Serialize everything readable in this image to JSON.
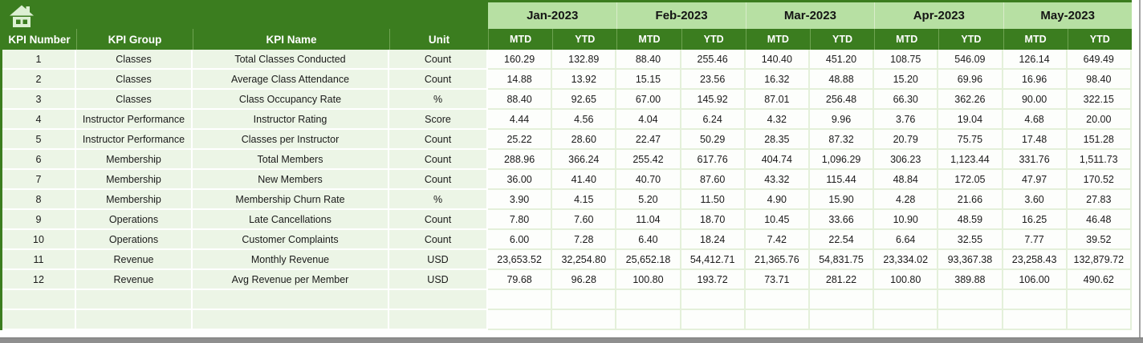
{
  "icons": {
    "home": "house"
  },
  "colors": {
    "header_green": "#3B7D1F",
    "month_band_green": "#B7E0A3",
    "row_green": "#ECF5E6",
    "cell_white": "#FDFEFC",
    "grid_line_green": "#E4F0DA",
    "home_icon_fill": "#DCF0D2",
    "bottom_bar_gray": "#8F8F8F"
  },
  "table": {
    "left_headers": [
      "KPI Number",
      "KPI Group",
      "KPI Name",
      "Unit"
    ],
    "months": [
      "Jan-2023",
      "Feb-2023",
      "Mar-2023",
      "Apr-2023",
      "May-2023"
    ],
    "sub_headers": [
      "MTD",
      "YTD"
    ],
    "empty_row_count": 2,
    "rows": [
      {
        "number": "1",
        "group": "Classes",
        "name": "Total Classes Conducted",
        "unit": "Count",
        "values": [
          "160.29",
          "132.89",
          "88.40",
          "255.46",
          "140.40",
          "451.20",
          "108.75",
          "546.09",
          "126.14",
          "649.49"
        ]
      },
      {
        "number": "2",
        "group": "Classes",
        "name": "Average Class Attendance",
        "unit": "Count",
        "values": [
          "14.88",
          "13.92",
          "15.15",
          "23.56",
          "16.32",
          "48.88",
          "15.20",
          "69.96",
          "16.96",
          "98.40"
        ]
      },
      {
        "number": "3",
        "group": "Classes",
        "name": "Class Occupancy Rate",
        "unit": "%",
        "values": [
          "88.40",
          "92.65",
          "67.00",
          "145.92",
          "87.01",
          "256.48",
          "66.30",
          "362.26",
          "90.00",
          "322.15"
        ]
      },
      {
        "number": "4",
        "group": "Instructor Performance",
        "name": "Instructor Rating",
        "unit": "Score",
        "values": [
          "4.44",
          "4.56",
          "4.04",
          "6.24",
          "4.32",
          "9.96",
          "3.76",
          "19.04",
          "4.68",
          "20.00"
        ]
      },
      {
        "number": "5",
        "group": "Instructor Performance",
        "name": "Classes per Instructor",
        "unit": "Count",
        "values": [
          "25.22",
          "28.60",
          "22.47",
          "50.29",
          "28.35",
          "87.32",
          "20.79",
          "75.75",
          "17.48",
          "151.28"
        ]
      },
      {
        "number": "6",
        "group": "Membership",
        "name": "Total Members",
        "unit": "Count",
        "values": [
          "288.96",
          "366.24",
          "255.42",
          "617.76",
          "404.74",
          "1,096.29",
          "306.23",
          "1,123.44",
          "331.76",
          "1,511.73"
        ]
      },
      {
        "number": "7",
        "group": "Membership",
        "name": "New Members",
        "unit": "Count",
        "values": [
          "36.00",
          "41.40",
          "40.70",
          "87.60",
          "43.32",
          "115.44",
          "48.84",
          "172.05",
          "47.97",
          "170.52"
        ]
      },
      {
        "number": "8",
        "group": "Membership",
        "name": "Membership Churn Rate",
        "unit": "%",
        "values": [
          "3.90",
          "4.15",
          "5.20",
          "11.50",
          "4.90",
          "15.90",
          "4.28",
          "21.66",
          "3.60",
          "27.83"
        ]
      },
      {
        "number": "9",
        "group": "Operations",
        "name": "Late Cancellations",
        "unit": "Count",
        "values": [
          "7.80",
          "7.60",
          "11.04",
          "18.70",
          "10.45",
          "33.66",
          "10.90",
          "48.59",
          "16.25",
          "46.48"
        ]
      },
      {
        "number": "10",
        "group": "Operations",
        "name": "Customer Complaints",
        "unit": "Count",
        "values": [
          "6.00",
          "7.28",
          "6.40",
          "18.24",
          "7.42",
          "22.54",
          "6.64",
          "32.55",
          "7.77",
          "39.52"
        ]
      },
      {
        "number": "11",
        "group": "Revenue",
        "name": "Monthly Revenue",
        "unit": "USD",
        "values": [
          "23,653.52",
          "32,254.80",
          "25,652.18",
          "54,412.71",
          "21,365.76",
          "54,831.75",
          "23,334.02",
          "93,367.38",
          "23,258.43",
          "132,879.72"
        ]
      },
      {
        "number": "12",
        "group": "Revenue",
        "name": "Avg Revenue per Member",
        "unit": "USD",
        "values": [
          "79.68",
          "96.28",
          "100.80",
          "193.72",
          "73.71",
          "281.22",
          "100.80",
          "389.88",
          "106.00",
          "490.62"
        ]
      }
    ]
  }
}
